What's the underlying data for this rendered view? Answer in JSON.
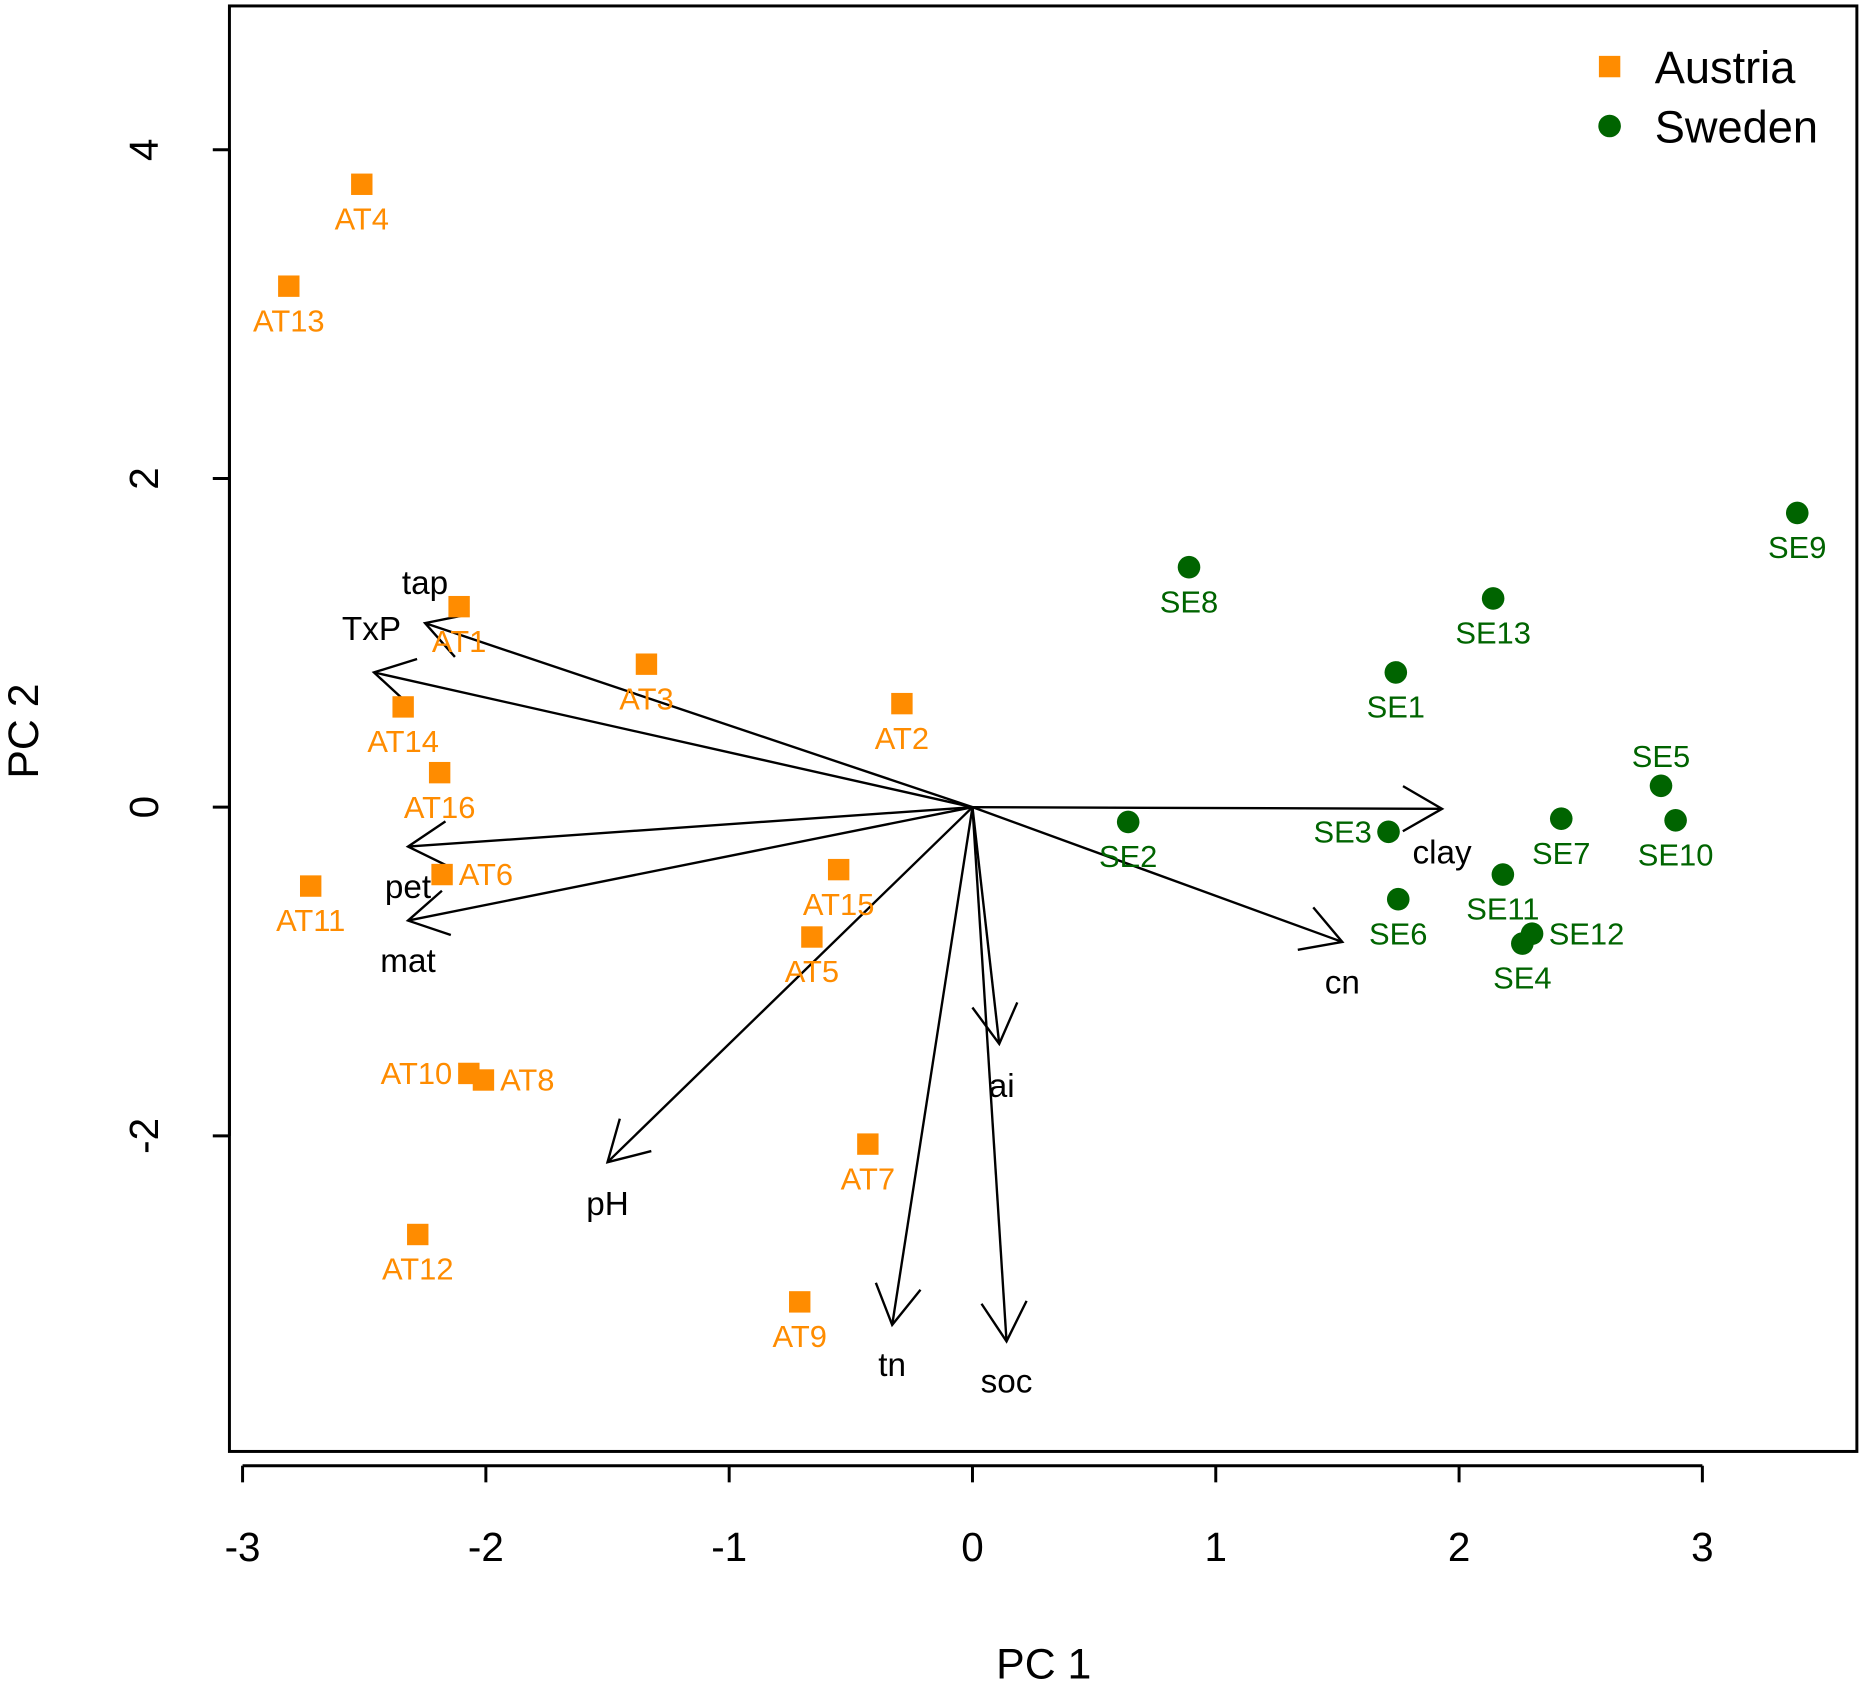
{
  "chart_data": {
    "type": "scatter",
    "subtype": "pca-biplot",
    "xlabel": "PC 1",
    "ylabel": "PC 2",
    "xlim": [
      -3.054,
      3.635
    ],
    "ylim": [
      -3.92,
      4.875
    ],
    "xticks": [
      -3,
      -2,
      -1,
      0,
      1,
      2,
      3
    ],
    "yticks": [
      -2,
      0,
      2,
      4
    ],
    "xtick_labels": [
      "-3",
      "-2",
      "-1",
      "0",
      "1",
      "2",
      "3"
    ],
    "ytick_labels": [
      "-2",
      "0",
      "2",
      "4"
    ],
    "grid": false,
    "legend_position": "top-right",
    "series": [
      {
        "name": "Austria",
        "color": "#FF8C00",
        "marker": "square",
        "points": [
          {
            "label": "AT1",
            "x": -2.11,
            "y": 1.22
          },
          {
            "label": "AT2",
            "x": -0.29,
            "y": 0.63
          },
          {
            "label": "AT3",
            "x": -1.34,
            "y": 0.87
          },
          {
            "label": "AT4",
            "x": -2.51,
            "y": 3.79
          },
          {
            "label": "AT5",
            "x": -0.66,
            "y": -0.79
          },
          {
            "label": "AT6",
            "x": -2.18,
            "y": -0.41
          },
          {
            "label": "AT7",
            "x": -0.43,
            "y": -2.05
          },
          {
            "label": "AT8",
            "x": -2.01,
            "y": -1.66
          },
          {
            "label": "AT9",
            "x": -0.71,
            "y": -3.01
          },
          {
            "label": "AT10",
            "x": -2.07,
            "y": -1.62
          },
          {
            "label": "AT11",
            "x": -2.72,
            "y": -0.48
          },
          {
            "label": "AT12",
            "x": -2.28,
            "y": -2.6
          },
          {
            "label": "AT13",
            "x": -2.81,
            "y": 3.17
          },
          {
            "label": "AT14",
            "x": -2.34,
            "y": 0.61
          },
          {
            "label": "AT15",
            "x": -0.55,
            "y": -0.38
          },
          {
            "label": "AT16",
            "x": -2.19,
            "y": 0.21
          }
        ]
      },
      {
        "name": "Sweden",
        "color": "#006400",
        "marker": "circle",
        "points": [
          {
            "label": "SE1",
            "x": 1.74,
            "y": 0.82
          },
          {
            "label": "SE2",
            "x": 0.64,
            "y": -0.09
          },
          {
            "label": "SE3",
            "x": 1.71,
            "y": -0.15
          },
          {
            "label": "SE4",
            "x": 2.26,
            "y": -0.83
          },
          {
            "label": "SE5",
            "x": 2.83,
            "y": 0.13
          },
          {
            "label": "SE6",
            "x": 1.75,
            "y": -0.56
          },
          {
            "label": "SE7",
            "x": 2.42,
            "y": -0.07
          },
          {
            "label": "SE8",
            "x": 0.89,
            "y": 1.46
          },
          {
            "label": "SE9",
            "x": 3.39,
            "y": 1.79
          },
          {
            "label": "SE10",
            "x": 2.89,
            "y": -0.08
          },
          {
            "label": "SE11",
            "x": 2.18,
            "y": -0.41
          },
          {
            "label": "SE12",
            "x": 2.3,
            "y": -0.77
          },
          {
            "label": "SE13",
            "x": 2.14,
            "y": 1.27
          }
        ]
      }
    ],
    "loadings": [
      {
        "label": "tap",
        "x": -2.25,
        "y": 1.12,
        "label_x": -2.25,
        "label_y": 1.37
      },
      {
        "label": "TxP",
        "x": -2.46,
        "y": 0.82,
        "label_x": -2.47,
        "label_y": 1.09
      },
      {
        "label": "pet",
        "x": -2.32,
        "y": -0.24,
        "label_x": -2.32,
        "label_y": -0.48
      },
      {
        "label": "mat",
        "x": -2.32,
        "y": -0.69,
        "label_x": -2.32,
        "label_y": -0.93
      },
      {
        "label": "pH",
        "x": -1.5,
        "y": -2.16,
        "label_x": -1.5,
        "label_y": -2.41
      },
      {
        "label": "tn",
        "x": -0.33,
        "y": -3.15,
        "label_x": -0.33,
        "label_y": -3.39
      },
      {
        "label": "soc",
        "x": 0.14,
        "y": -3.25,
        "label_x": 0.14,
        "label_y": -3.49
      },
      {
        "label": "ai",
        "x": 0.11,
        "y": -1.44,
        "label_x": 0.12,
        "label_y": -1.69
      },
      {
        "label": "cn",
        "x": 1.52,
        "y": -0.82,
        "label_x": 1.52,
        "label_y": -1.06
      },
      {
        "label": "clay",
        "x": 1.93,
        "y": -0.01,
        "label_x": 1.93,
        "label_y": -0.27
      }
    ],
    "legend": [
      {
        "label": "Austria",
        "color": "#FF8C00",
        "marker": "square"
      },
      {
        "label": "Sweden",
        "color": "#006400",
        "marker": "circle"
      }
    ]
  }
}
